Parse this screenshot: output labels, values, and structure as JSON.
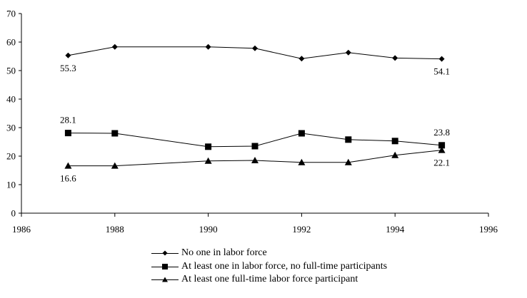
{
  "chart_data": {
    "type": "line",
    "title": "",
    "xlabel": "",
    "ylabel": "",
    "xlim": [
      1986,
      1996
    ],
    "ylim": [
      0,
      70
    ],
    "x_ticks": [
      1986,
      1988,
      1990,
      1992,
      1994,
      1996
    ],
    "y_ticks": [
      0,
      10,
      20,
      30,
      40,
      50,
      60,
      70
    ],
    "grid": false,
    "legend_position": "bottom",
    "x": [
      1987,
      1988,
      1990,
      1991,
      1992,
      1993,
      1994,
      1995
    ],
    "series": [
      {
        "name": "No one in labor force",
        "marker": "diamond",
        "values": [
          55.3,
          58.3,
          58.3,
          57.8,
          54.2,
          56.3,
          54.4,
          54.1
        ]
      },
      {
        "name": "At least one in labor force, no full-time participants",
        "marker": "square",
        "values": [
          28.1,
          28.0,
          23.3,
          23.5,
          28.0,
          25.8,
          25.3,
          23.8
        ]
      },
      {
        "name": "At least one full-time labor force participant",
        "marker": "triangle",
        "values": [
          16.6,
          16.6,
          18.3,
          18.5,
          17.8,
          17.8,
          20.3,
          22.1
        ]
      }
    ],
    "annotations": [
      {
        "series": 0,
        "x": 1987,
        "text": "55.3",
        "position": "below"
      },
      {
        "series": 0,
        "x": 1995,
        "text": "54.1",
        "position": "below"
      },
      {
        "series": 1,
        "x": 1987,
        "text": "28.1",
        "position": "above"
      },
      {
        "series": 1,
        "x": 1995,
        "text": "23.8",
        "position": "above"
      },
      {
        "series": 2,
        "x": 1987,
        "text": "16.6",
        "position": "below"
      },
      {
        "series": 2,
        "x": 1995,
        "text": "22.1",
        "position": "below"
      }
    ]
  },
  "legend": {
    "items": [
      {
        "label": "No one in labor force",
        "marker": "diamond"
      },
      {
        "label": "At least one in labor force, no full-time participants",
        "marker": "square"
      },
      {
        "label": "At least one full-time labor force participant",
        "marker": "triangle"
      }
    ]
  },
  "colors": {
    "line": "#000000",
    "axis": "#000000",
    "background": "#ffffff"
  }
}
